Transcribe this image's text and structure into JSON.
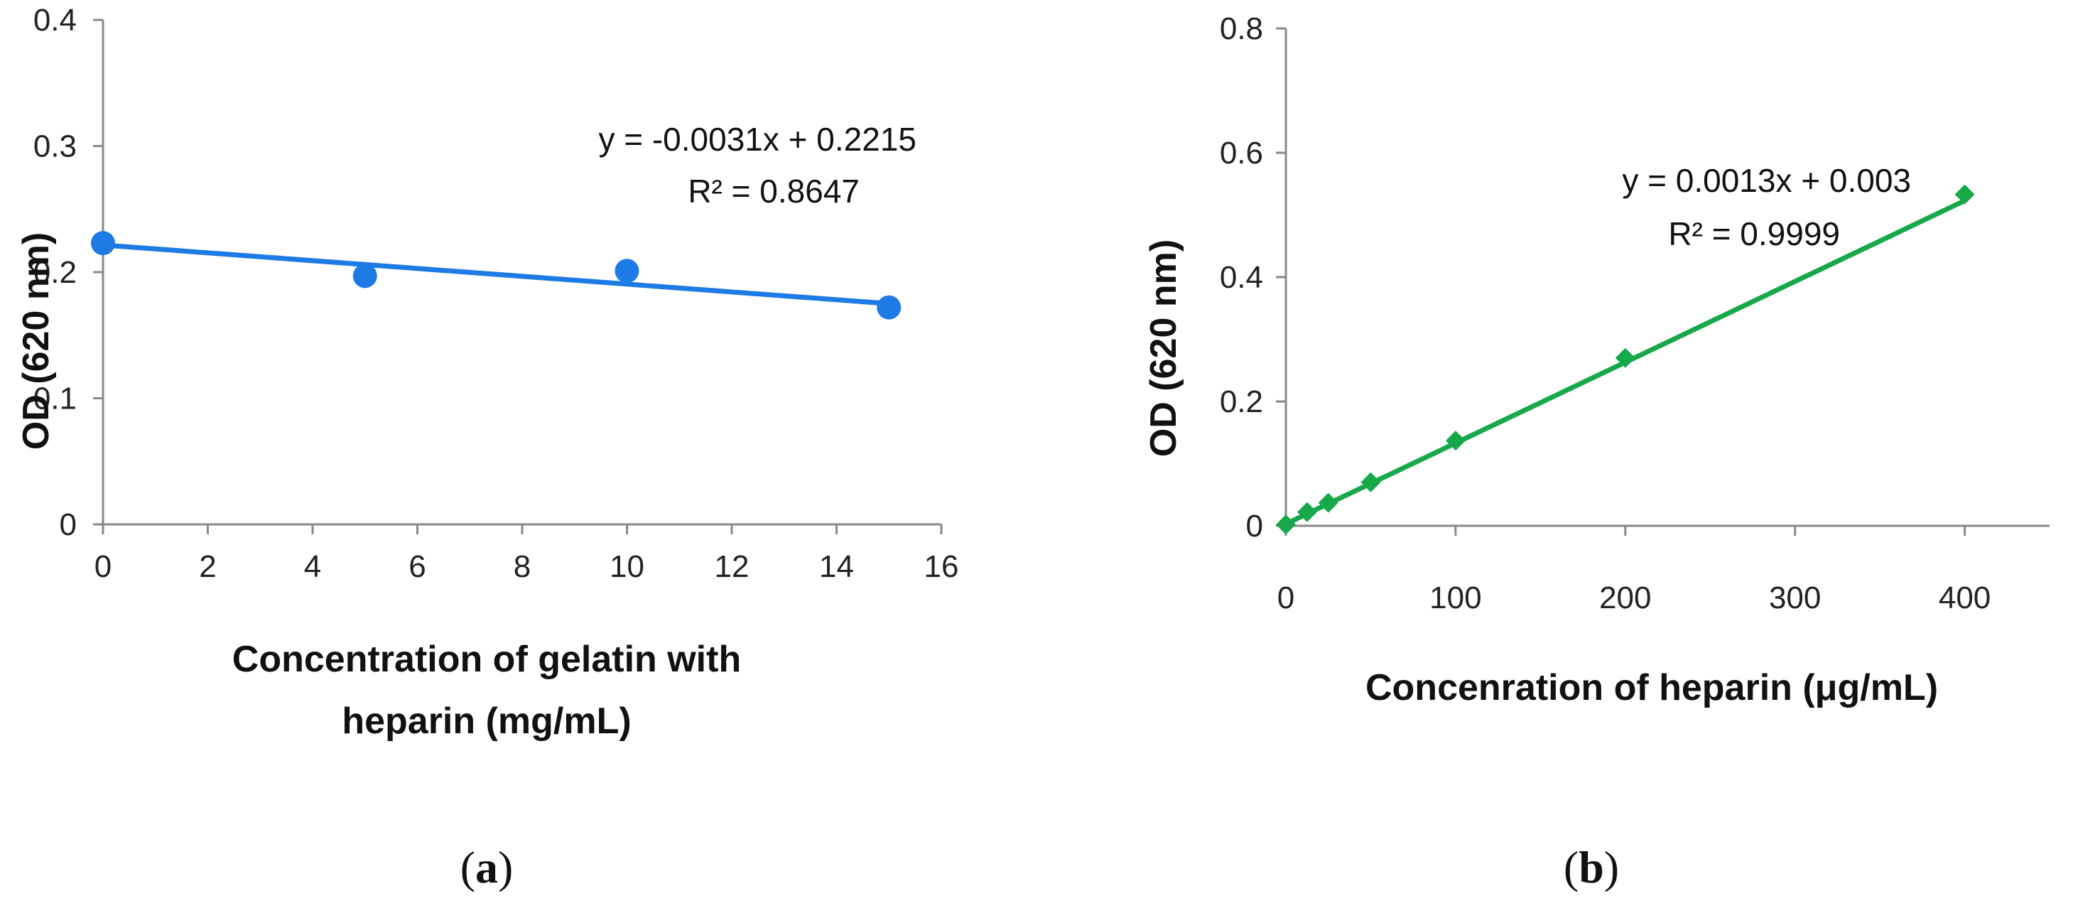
{
  "chart_data": [
    {
      "type": "scatter",
      "panel_label": "a",
      "xlabel_line1": "Concentration of gelatin with",
      "xlabel_line2": "heparin (mg/mL)",
      "ylabel": "OD (620 nm)",
      "xlim": [
        0,
        16
      ],
      "ylim": [
        0,
        0.4
      ],
      "xticks": [
        "0",
        "2",
        "4",
        "6",
        "8",
        "10",
        "12",
        "14",
        "16"
      ],
      "yticks": [
        "0",
        "0.1",
        "0.2",
        "0.3",
        "0.4"
      ],
      "series": [
        {
          "name": "OD",
          "x": [
            0,
            5,
            10,
            15
          ],
          "y": [
            0.223,
            0.197,
            0.201,
            0.172
          ],
          "marker": "circle",
          "color": "#1e7be6"
        }
      ],
      "trendline": {
        "slope": -0.0031,
        "intercept": 0.2215,
        "x_range": [
          0,
          15
        ],
        "color": "#1e7be6"
      },
      "equation": "y = -0.0031x + 0.2215",
      "r_squared": "R² = 0.8647"
    },
    {
      "type": "scatter",
      "panel_label": "b",
      "xlabel_line1": "Concenration of heparin (μg/mL)",
      "ylabel": "OD (620 nm)",
      "xlim": [
        0,
        450
      ],
      "ylim": [
        0,
        0.8
      ],
      "xticks": [
        "0",
        "100",
        "200",
        "300",
        "400"
      ],
      "yticks": [
        "0",
        "0.2",
        "0.4",
        "0.6",
        "0.8"
      ],
      "series": [
        {
          "name": "OD",
          "x": [
            0,
            12.5,
            25,
            50,
            100,
            200,
            400
          ],
          "y": [
            0.002,
            0.022,
            0.037,
            0.07,
            0.137,
            0.27,
            0.533
          ],
          "marker": "diamond",
          "color": "#17a84a"
        }
      ],
      "trendline": {
        "slope": 0.0013,
        "intercept": 0.003,
        "x_range": [
          0,
          400
        ],
        "color": "#17a84a"
      },
      "equation": "y = 0.0013x + 0.003",
      "r_squared": "R² = 0.9999"
    }
  ]
}
